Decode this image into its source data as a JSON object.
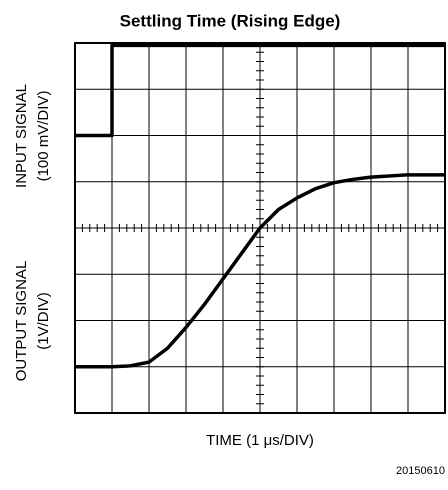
{
  "chart_data": {
    "type": "line",
    "title": "Settling Time (Rising Edge)",
    "y_label_top": [
      "INPUT SIGNAL",
      "(100 mV/DIV)"
    ],
    "y_label_bottom": [
      "OUTPUT SIGNAL",
      "(1V/DIV)"
    ],
    "x_label": "TIME (1 μs/DIV)",
    "figure_id": "20150610",
    "xlim": [
      0,
      10
    ],
    "ylim": [
      0,
      8
    ],
    "xticks": [
      0,
      1,
      2,
      3,
      4,
      5,
      6,
      7,
      8,
      9,
      10
    ],
    "yticks": [
      0,
      1,
      2,
      3,
      4,
      5,
      6,
      7,
      8
    ],
    "grid": true,
    "series": [
      {
        "name": "INPUT SIGNAL",
        "color": "#000000",
        "x": [
          0,
          1,
          1,
          10
        ],
        "values": [
          6,
          6,
          7.95,
          7.95
        ]
      },
      {
        "name": "OUTPUT SIGNAL",
        "color": "#000000",
        "x": [
          0,
          1,
          1.5,
          2,
          2.5,
          3,
          3.5,
          4,
          4.5,
          5,
          5.5,
          6,
          6.5,
          7,
          7.5,
          8,
          9,
          10
        ],
        "values": [
          1,
          1,
          1.02,
          1.1,
          1.4,
          1.85,
          2.35,
          2.9,
          3.45,
          4,
          4.4,
          4.65,
          4.85,
          4.98,
          5.05,
          5.1,
          5.15,
          5.15
        ]
      }
    ]
  }
}
